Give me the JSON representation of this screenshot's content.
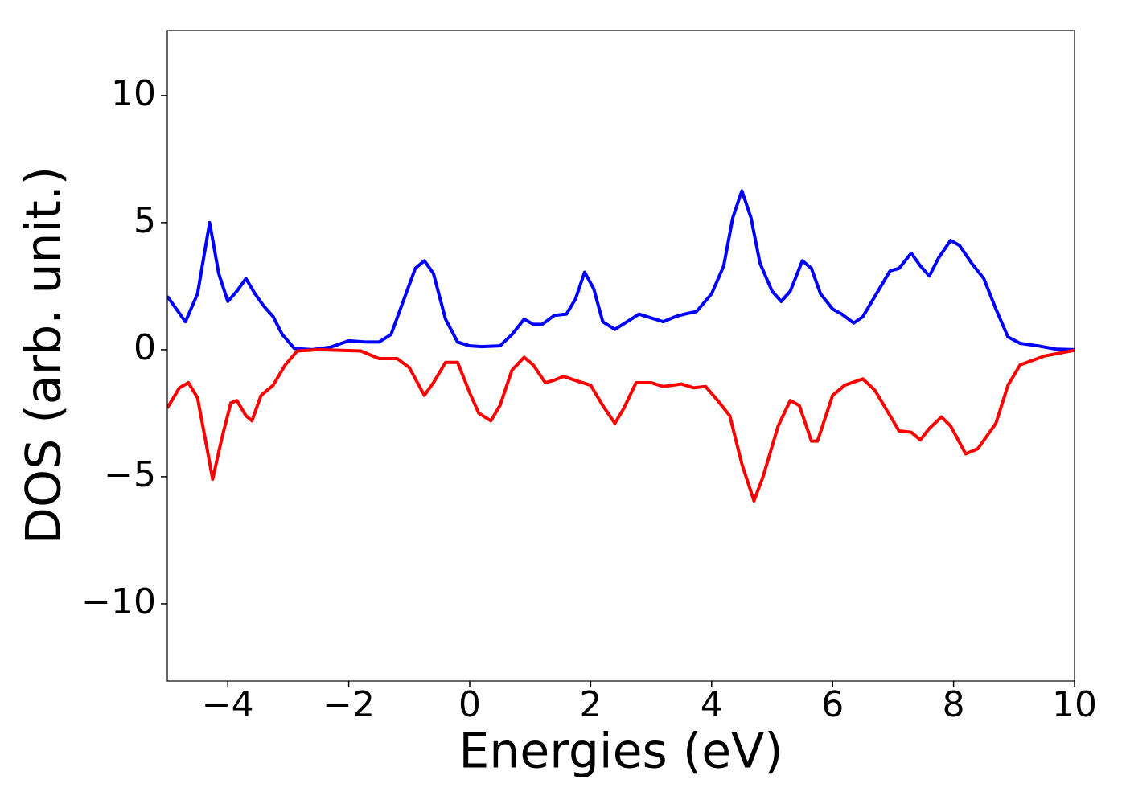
{
  "chart_data": {
    "type": "line",
    "x_label": "Energies (eV)",
    "y_label": "DOS (arb. unit.)",
    "xlim": [
      -5,
      10
    ],
    "ylim": [
      -13.04,
      12.56
    ],
    "xticks": [
      {
        "value": -4,
        "label": "−4"
      },
      {
        "value": -2,
        "label": "−2"
      },
      0,
      2,
      4,
      6,
      8,
      10
    ],
    "yticks": [
      {
        "value": -10,
        "label": "−10"
      },
      {
        "value": -5,
        "label": "−5"
      },
      0,
      5,
      10
    ],
    "grid": false,
    "series": [
      {
        "color": "#0000ff",
        "x": [
          -5,
          -4.7,
          -4.5,
          -4.3,
          -4.15,
          -4.0,
          -3.85,
          -3.7,
          -3.55,
          -3.4,
          -3.25,
          -3.1,
          -2.9,
          -2.6,
          -2.3,
          -2.0,
          -1.7,
          -1.5,
          -1.3,
          -1.1,
          -0.9,
          -0.75,
          -0.6,
          -0.4,
          -0.2,
          0,
          0.2,
          0.5,
          0.7,
          0.9,
          1.05,
          1.2,
          1.4,
          1.6,
          1.75,
          1.9,
          2.05,
          2.2,
          2.4,
          2.6,
          2.8,
          3.0,
          3.2,
          3.4,
          3.55,
          3.75,
          4.0,
          4.2,
          4.35,
          4.5,
          4.65,
          4.8,
          5.0,
          5.15,
          5.3,
          5.5,
          5.65,
          5.8,
          6.0,
          6.15,
          6.35,
          6.5,
          6.7,
          6.95,
          7.1,
          7.3,
          7.45,
          7.6,
          7.75,
          7.95,
          8.1,
          8.3,
          8.5,
          8.7,
          8.9,
          9.1,
          9.4,
          9.7,
          10
        ],
        "values": [
          2.1,
          1.1,
          2.2,
          5.0,
          3.0,
          1.9,
          2.3,
          2.8,
          2.2,
          1.7,
          1.3,
          0.6,
          0.05,
          0.0,
          0.1,
          0.35,
          0.3,
          0.3,
          0.6,
          1.9,
          3.2,
          3.5,
          3.0,
          1.2,
          0.3,
          0.15,
          0.12,
          0.15,
          0.6,
          1.2,
          1.0,
          1.0,
          1.35,
          1.4,
          2.0,
          3.05,
          2.4,
          1.1,
          0.8,
          1.1,
          1.4,
          1.25,
          1.1,
          1.3,
          1.4,
          1.5,
          2.2,
          3.3,
          5.2,
          6.25,
          5.2,
          3.4,
          2.3,
          1.9,
          2.3,
          3.5,
          3.2,
          2.2,
          1.6,
          1.4,
          1.05,
          1.3,
          2.1,
          3.1,
          3.2,
          3.8,
          3.3,
          2.9,
          3.6,
          4.3,
          4.1,
          3.4,
          2.8,
          1.6,
          0.5,
          0.25,
          0.15,
          0.02,
          0.0
        ]
      },
      {
        "color": "#ff0000",
        "x": [
          -5,
          -4.8,
          -4.65,
          -4.5,
          -4.35,
          -4.25,
          -4.1,
          -3.95,
          -3.85,
          -3.7,
          -3.6,
          -3.45,
          -3.25,
          -3.05,
          -2.85,
          -2.5,
          -1.8,
          -1.5,
          -1.2,
          -1.0,
          -0.75,
          -0.6,
          -0.4,
          -0.2,
          0.0,
          0.15,
          0.35,
          0.5,
          0.7,
          0.9,
          1.05,
          1.25,
          1.4,
          1.55,
          1.8,
          2.0,
          2.2,
          2.4,
          2.55,
          2.75,
          3.0,
          3.2,
          3.5,
          3.7,
          3.9,
          4.1,
          4.3,
          4.5,
          4.7,
          4.85,
          5.1,
          5.3,
          5.45,
          5.65,
          5.75,
          6.0,
          6.2,
          6.5,
          6.7,
          6.9,
          7.1,
          7.3,
          7.45,
          7.6,
          7.8,
          7.95,
          8.2,
          8.4,
          8.7,
          8.9,
          9.1,
          9.5,
          10
        ],
        "values": [
          -2.3,
          -1.5,
          -1.3,
          -1.9,
          -3.8,
          -5.1,
          -3.5,
          -2.1,
          -2.0,
          -2.6,
          -2.8,
          -1.8,
          -1.4,
          -0.6,
          -0.05,
          0.0,
          -0.05,
          -0.35,
          -0.35,
          -0.7,
          -1.8,
          -1.3,
          -0.5,
          -0.5,
          -1.7,
          -2.5,
          -2.8,
          -2.2,
          -0.8,
          -0.3,
          -0.6,
          -1.3,
          -1.2,
          -1.05,
          -1.25,
          -1.4,
          -2.2,
          -2.9,
          -2.3,
          -1.3,
          -1.3,
          -1.45,
          -1.35,
          -1.5,
          -1.45,
          -2.0,
          -2.6,
          -4.5,
          -5.95,
          -5.0,
          -3.0,
          -2.0,
          -2.2,
          -3.6,
          -3.6,
          -1.8,
          -1.4,
          -1.15,
          -1.6,
          -2.4,
          -3.2,
          -3.25,
          -3.55,
          -3.1,
          -2.65,
          -3.0,
          -4.1,
          -3.9,
          -2.9,
          -1.4,
          -0.6,
          -0.25,
          -0.02
        ]
      }
    ]
  }
}
